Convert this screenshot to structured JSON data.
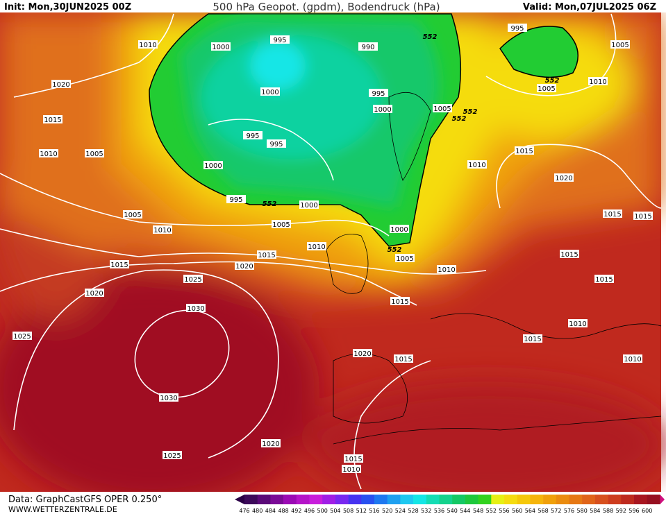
{
  "header": {
    "init": "Init: Mon,30JUN2025 00Z",
    "title": "500 hPa Geopot. (gpdm), Bodendruck (hPa)",
    "valid": "Valid: Mon,07JUL2025 06Z"
  },
  "footer": {
    "data": "Data: GraphCastGFS OPER 0.250°",
    "site": "WWW.WETTERZENTRALE.DE"
  },
  "colorbar": {
    "labels": [
      476,
      480,
      484,
      488,
      492,
      496,
      500,
      504,
      508,
      512,
      516,
      520,
      524,
      528,
      532,
      536,
      540,
      544,
      548,
      552,
      556,
      560,
      564,
      568,
      572,
      576,
      580,
      584,
      588,
      592,
      596,
      600
    ]
  },
  "contour_labels": [
    "1010",
    "1000",
    "995",
    "990",
    "552",
    "995",
    "1005",
    "1020",
    "1000",
    "995",
    "552",
    "1005",
    "1010",
    "1015",
    "1000",
    "1005",
    "552",
    "552",
    "1010",
    "1005",
    "995",
    "995",
    "1000",
    "1015",
    "1010",
    "1020",
    "995",
    "552",
    "1000",
    "1005",
    "1010",
    "1005",
    "1000",
    "1015",
    "1015",
    "1010",
    "552",
    "1005",
    "1015",
    "1015",
    "1020",
    "1010",
    "1015",
    "1015",
    "1025",
    "1020",
    "1015",
    "1030",
    "1010",
    "1025",
    "1015",
    "1020",
    "1015",
    "1010",
    "1030",
    "1020",
    "1025",
    "1015",
    "1010"
  ]
}
